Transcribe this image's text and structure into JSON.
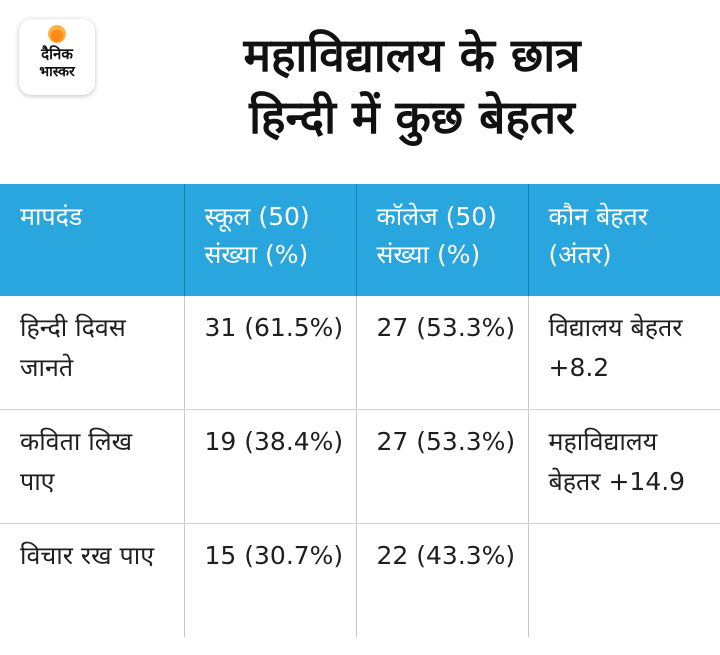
{
  "brand": {
    "line1": "दैनिक",
    "line2": "भास्कर"
  },
  "title": {
    "line1": "महाविद्यालय के छात्र",
    "line2": "हिन्दी में कुछ बेहतर"
  },
  "table": {
    "headers": [
      "मापदंड",
      "स्कूल (50) संख्या (%)",
      "कॉलेज (50) संख्या (%)",
      "कौन बेहतर (अंतर)"
    ],
    "rows": [
      [
        "हिन्दी दिवस जानते",
        "31 (61.5%)",
        "27 (53.3%)",
        "विद्यालय बेहतर +8.2"
      ],
      [
        "कविता लिख पाए",
        "19 (38.4%)",
        "27 (53.3%)",
        "महाविद्यालय बेहतर +14.9"
      ],
      [
        "विचार रख पाए",
        "15 (30.7%)",
        "22 (43.3%)",
        ""
      ]
    ]
  },
  "colors": {
    "header_bg": "#2aa6df",
    "header_text": "#ffffff",
    "accent_sun": "#ff8c1a"
  }
}
